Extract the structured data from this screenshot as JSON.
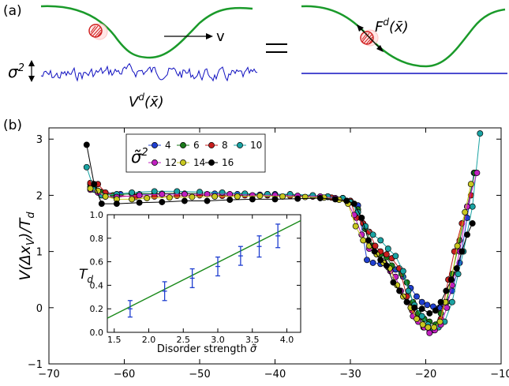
{
  "panel_a": {
    "label": "(a)",
    "sigma_label": "σ",
    "sigma_sup": "2",
    "velocity_label": "v",
    "disorder_label": "V",
    "disorder_sup": "d",
    "disorder_arg": "(x̄)",
    "force_label": "F",
    "force_sup": "d",
    "force_arg": "(x̄)",
    "colors": {
      "trap": "#1a9a2a",
      "disorder": "#1010c0",
      "particle": "#d02020"
    }
  },
  "panel_b": {
    "label": "(b)"
  },
  "chart_data": [
    {
      "type": "line",
      "ylabel": "V(Δx",
      "ylabel_sub": "V",
      "ylabel_tail": ")/T",
      "ylabel_sub2": "d",
      "xlim": [
        -70,
        -10
      ],
      "ylim": [
        -1,
        3.2
      ],
      "xticks": [
        -70,
        -60,
        -50,
        -40,
        -30,
        -20,
        -10
      ],
      "yticks": [
        -1,
        0,
        1,
        2,
        3
      ],
      "legend": {
        "title": "σ̃",
        "title_sup": "2",
        "placement": "top-left",
        "entries": [
          "4",
          "6",
          "8",
          "10",
          "12",
          "14",
          "16"
        ]
      },
      "series": [
        {
          "name": "4",
          "color": "#1f3fd0",
          "x": [
            -64.5,
            -64,
            -63,
            -60.5,
            -58,
            -55,
            -52,
            -50,
            -48,
            -45,
            -42,
            -40,
            -38,
            -35,
            -33,
            -31,
            -30,
            -29,
            -27.8,
            -27,
            -26,
            -25,
            -24,
            -23,
            -22,
            -21.2,
            -20.5,
            -19.8,
            -19,
            -18.2,
            -17.5,
            -16.5,
            -15.5,
            -14.5,
            -13.6
          ],
          "values": [
            2.2,
            2.18,
            2.06,
            2.02,
            2.02,
            2.03,
            2.03,
            2.02,
            2.03,
            2.02,
            2.01,
            2.02,
            2.01,
            1.98,
            1.97,
            1.95,
            1.9,
            1.82,
            0.85,
            0.8,
            0.78,
            0.72,
            0.68,
            0.55,
            0.35,
            0.2,
            0.1,
            0.05,
            0.02,
            0.0,
            0.05,
            0.3,
            0.8,
            1.6,
            2.4
          ]
        },
        {
          "name": "6",
          "color": "#1a7a1a",
          "x": [
            -64.5,
            -64,
            -63,
            -61.5,
            -59,
            -56,
            -53,
            -50,
            -47,
            -44,
            -41,
            -38,
            -35,
            -33,
            -31,
            -30,
            -29,
            -28,
            -27,
            -26,
            -25.2,
            -24.5,
            -23.2,
            -22.5,
            -21.7,
            -21,
            -20.2,
            -19.5,
            -18.7,
            -18,
            -17.2,
            -16.5,
            -15.5,
            -14.5,
            -13.5
          ],
          "values": [
            2.15,
            2.15,
            2.05,
            2.0,
            2.03,
            2.03,
            2.04,
            2.03,
            2.02,
            2.02,
            2.02,
            2.01,
            1.99,
            1.98,
            1.95,
            1.88,
            1.75,
            1.4,
            1.1,
            0.95,
            0.9,
            0.75,
            0.6,
            0.45,
            0.1,
            -0.1,
            -0.2,
            -0.25,
            -0.3,
            -0.1,
            0.1,
            0.6,
            1.2,
            1.8,
            2.4
          ]
        },
        {
          "name": "8",
          "color": "#c81e1e",
          "x": [
            -64.5,
            -63.5,
            -62.5,
            -61,
            -58.5,
            -56,
            -53,
            -50,
            -47,
            -44,
            -41,
            -38,
            -35,
            -32.5,
            -31,
            -30,
            -29.2,
            -28.3,
            -27.5,
            -26.7,
            -26,
            -25.2,
            -24.5,
            -23.5,
            -22.5,
            -21.8,
            -21,
            -20.3,
            -19.5,
            -18.7,
            -18,
            -17,
            -16.2,
            -15.2,
            -14
          ],
          "values": [
            2.22,
            2.2,
            2.05,
            2.0,
            1.97,
            1.98,
            1.99,
            2.0,
            1.99,
            2.0,
            2.0,
            1.99,
            1.98,
            1.96,
            1.94,
            1.9,
            1.6,
            1.5,
            1.35,
            1.1,
            1.0,
            0.95,
            0.88,
            0.7,
            0.2,
            -0.05,
            -0.2,
            -0.35,
            -0.4,
            -0.35,
            -0.2,
            0.5,
            1.0,
            1.5,
            2.0
          ]
        },
        {
          "name": "10",
          "color": "#1aa3a3",
          "x": [
            -65,
            -64,
            -63,
            -61,
            -59,
            -56,
            -53,
            -50,
            -47,
            -44,
            -41,
            -38,
            -35,
            -33,
            -31,
            -30,
            -29,
            -28,
            -27,
            -26,
            -25,
            -24,
            -23,
            -22.3,
            -21.5,
            -20.5,
            -19.7,
            -19,
            -18.3,
            -17.5,
            -16.5,
            -15.7,
            -15,
            -13.8,
            -12.8
          ],
          "values": [
            2.5,
            2.1,
            2.0,
            2.02,
            2.05,
            2.07,
            2.07,
            2.06,
            2.05,
            2.03,
            2.02,
            2.02,
            2.0,
            1.98,
            1.95,
            1.88,
            1.7,
            1.45,
            1.3,
            1.2,
            1.05,
            0.92,
            0.65,
            0.3,
            0.05,
            -0.15,
            -0.3,
            -0.4,
            -0.35,
            -0.25,
            0.1,
            0.6,
            1.0,
            1.8,
            3.1
          ]
        },
        {
          "name": "12",
          "color": "#c020c0",
          "x": [
            -64.5,
            -63.5,
            -62.5,
            -61,
            -58,
            -55,
            -52,
            -49,
            -46,
            -43,
            -40,
            -37,
            -34,
            -32,
            -30.5,
            -29.5,
            -28.5,
            -27.5,
            -26.5,
            -25.5,
            -24.7,
            -24,
            -23.3,
            -22.5,
            -21.7,
            -21,
            -20.2,
            -19.5,
            -18.8,
            -18,
            -17.2,
            -16.5,
            -15.5,
            -14.5,
            -13.2
          ],
          "values": [
            2.1,
            2.05,
            1.98,
            1.97,
            2.0,
            2.02,
            2.02,
            2.02,
            2.02,
            2.0,
            2.0,
            1.99,
            1.98,
            1.95,
            1.9,
            1.65,
            1.3,
            1.05,
            0.95,
            0.8,
            0.65,
            0.55,
            0.3,
            0.1,
            -0.15,
            -0.25,
            -0.35,
            -0.45,
            -0.4,
            -0.3,
            0.0,
            0.4,
            1.0,
            1.8,
            2.4
          ]
        },
        {
          "name": "14",
          "color": "#c8c820",
          "x": [
            -64.5,
            -63.5,
            -62.5,
            -61,
            -59,
            -57,
            -54,
            -51,
            -48,
            -45,
            -42,
            -39,
            -36,
            -33.5,
            -31.5,
            -30.3,
            -29.3,
            -28.3,
            -27.5,
            -26.5,
            -25.6,
            -24.8,
            -23.8,
            -23,
            -22,
            -21.2,
            -20.4,
            -19.7,
            -18.9,
            -18.1,
            -17.4,
            -16.6,
            -15.8,
            -14.8,
            -14
          ],
          "values": [
            2.12,
            2.08,
            1.98,
            1.93,
            1.93,
            1.95,
            1.96,
            1.97,
            1.98,
            1.98,
            1.99,
            1.98,
            1.97,
            1.96,
            1.92,
            1.85,
            1.45,
            1.2,
            1.1,
            0.95,
            0.8,
            0.7,
            0.4,
            0.2,
            0.0,
            -0.2,
            -0.3,
            -0.35,
            -0.35,
            -0.25,
            0.1,
            0.5,
            1.1,
            1.7,
            2.2
          ]
        },
        {
          "name": "16",
          "color": "#000000",
          "x": [
            -65,
            -64,
            -63,
            -61,
            -58,
            -55,
            -52,
            -49,
            -46,
            -43,
            -40,
            -37,
            -34,
            -32,
            -30.5,
            -29.5,
            -28.5,
            -27.6,
            -26.8,
            -26,
            -25.2,
            -24.3,
            -23.5,
            -22.5,
            -21.5,
            -20.5,
            -19.5,
            -18.7,
            -18,
            -17.3,
            -16.6,
            -15.9,
            -15.2,
            -14.5,
            -13.8
          ],
          "values": [
            2.9,
            2.2,
            1.85,
            1.85,
            1.87,
            1.88,
            1.9,
            1.9,
            1.92,
            1.93,
            1.93,
            1.94,
            1.95,
            1.93,
            1.9,
            1.85,
            1.6,
            1.2,
            1.0,
            0.85,
            0.75,
            0.45,
            0.3,
            0.1,
            0.0,
            -0.02,
            -0.1,
            -0.05,
            0.1,
            0.3,
            0.5,
            0.7,
            1.0,
            1.3,
            1.5
          ]
        }
      ]
    },
    {
      "type": "line",
      "xlabel": "Disorder strength",
      "xlabel_symbol": "σ̃",
      "ylabel": "T",
      "ylabel_sub": "d",
      "xlim": [
        1.4,
        4.2
      ],
      "ylim": [
        0,
        1.0
      ],
      "xticks": [
        "1.5",
        "2.0",
        "2.5",
        "3.0",
        "3.5",
        "4.0"
      ],
      "yticks": [
        "0.0",
        "0.2",
        "0.4",
        "0.6",
        "0.8",
        "1.0"
      ],
      "fit_line": {
        "color": "#1a8a1a",
        "x": [
          1.4,
          4.2
        ],
        "values": [
          0.12,
          0.95
        ]
      },
      "points": {
        "color": "#1f3fd0",
        "x": [
          1.73,
          2.23,
          2.63,
          3.0,
          3.33,
          3.6,
          3.87
        ],
        "values": [
          0.2,
          0.35,
          0.46,
          0.56,
          0.65,
          0.73,
          0.82
        ],
        "errors": [
          0.07,
          0.08,
          0.08,
          0.08,
          0.08,
          0.09,
          0.1
        ]
      }
    }
  ]
}
